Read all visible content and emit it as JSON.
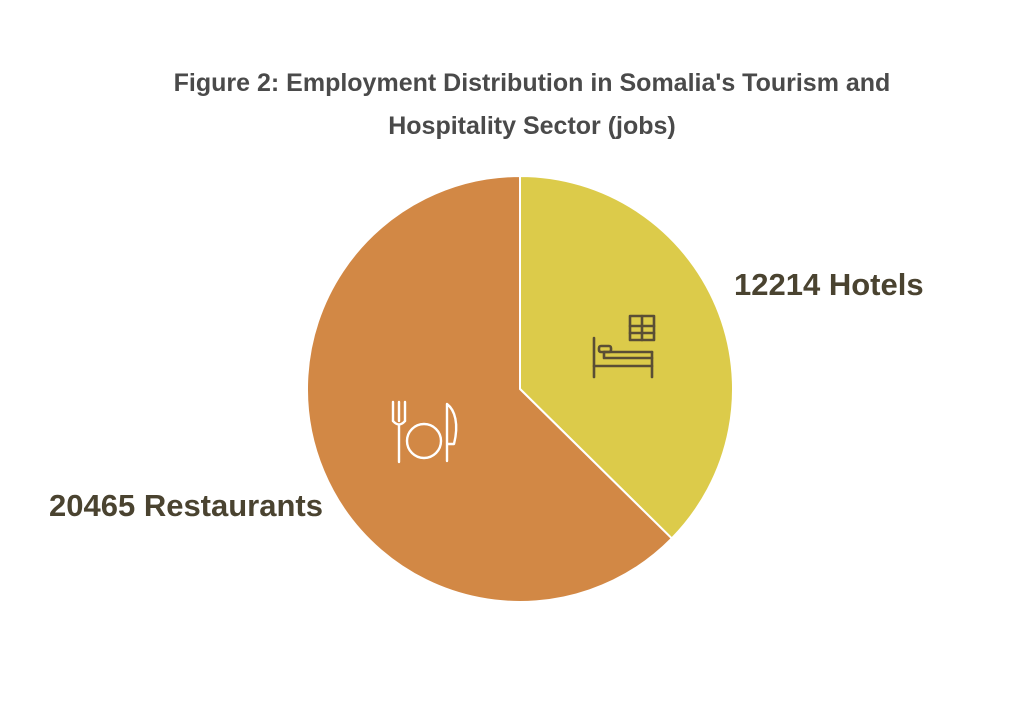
{
  "chart_data": {
    "type": "pie",
    "title": "Figure 2: Employment Distribution in Somalia's Tourism and Hospitality Sector (jobs)",
    "unit": "jobs",
    "slices": [
      {
        "name": "Hotels",
        "value": 12214,
        "label": "12214 Hotels",
        "color": "#dccb4a",
        "icon": "hotel-bed-icon"
      },
      {
        "name": "Restaurants",
        "value": 20465,
        "label": "20465 Restaurants",
        "color": "#d28845",
        "icon": "fork-plate-knife-icon"
      }
    ],
    "start_angle_deg": 0,
    "direction": "clockwise",
    "slice_border_color": "#ffffff",
    "legend": "none",
    "labels": "outside"
  }
}
